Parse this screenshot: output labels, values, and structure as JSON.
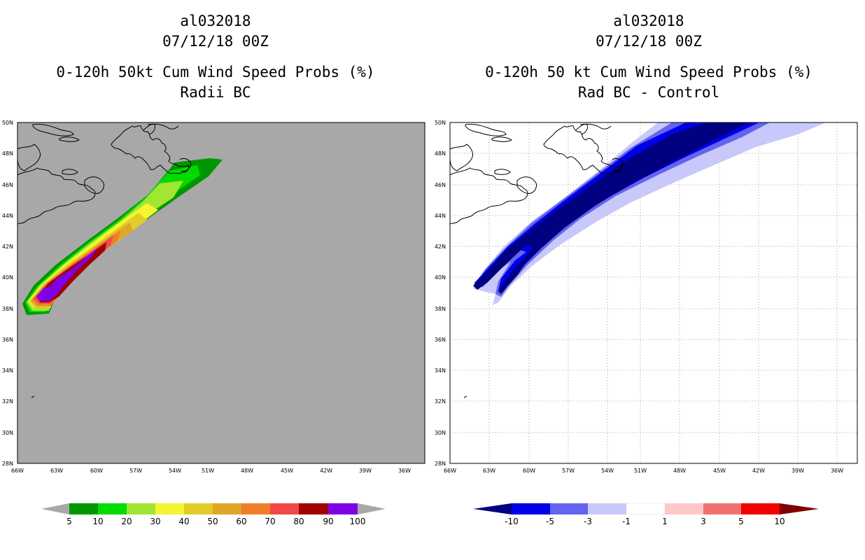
{
  "left_panel": {
    "title_line1": "al032018",
    "title_line2": "07/12/18 00Z",
    "title_line3": "0-120h 50kt Cum Wind Speed Probs (%)",
    "title_line4": "Radii BC",
    "lat_labels": [
      "50N",
      "48N",
      "46N",
      "44N",
      "42N",
      "40N",
      "38N",
      "36N",
      "34N",
      "32N",
      "30N",
      "28N"
    ],
    "lon_labels": [
      "66W",
      "63W",
      "60W",
      "57W",
      "54W",
      "51W",
      "48W",
      "45W",
      "42W",
      "39W",
      "36W"
    ],
    "colorbar": {
      "labels": [
        "5",
        "10",
        "20",
        "30",
        "40",
        "50",
        "60",
        "70",
        "80",
        "90",
        "100"
      ],
      "colors": [
        "#009600",
        "#00dc00",
        "#a0e632",
        "#f5f532",
        "#e1cd28",
        "#e1a528",
        "#f07e28",
        "#f04848",
        "#a00000",
        "#8000e6"
      ],
      "under_color": "#a8a8a8",
      "over_color": "#a8a8a8"
    }
  },
  "right_panel": {
    "title_line1": "al032018",
    "title_line2": "07/12/18 00Z",
    "title_line3": "0-120h 50 kt Cum Wind Speed Probs (%)",
    "title_line4": "Rad BC - Control",
    "lat_labels": [
      "50N",
      "48N",
      "46N",
      "44N",
      "42N",
      "40N",
      "38N",
      "36N",
      "34N",
      "32N",
      "30N",
      "28N"
    ],
    "lon_labels": [
      "66W",
      "63W",
      "60W",
      "57W",
      "54W",
      "51W",
      "48W",
      "45W",
      "42W",
      "39W",
      "36W"
    ],
    "colorbar": {
      "labels": [
        "-10",
        "-5",
        "-3",
        "-1",
        "1",
        "3",
        "5",
        "10"
      ],
      "colors": [
        "#0000e6",
        "#6464f0",
        "#c8c8fa",
        "#ffffff",
        "#ffc8c8",
        "#f07070",
        "#f00000"
      ],
      "under_color": "#000080",
      "over_color": "#800000"
    }
  },
  "map_colors": {
    "land_bg": "#a8a8a8",
    "grid": "#a0a0a0",
    "coast": "#000000"
  }
}
